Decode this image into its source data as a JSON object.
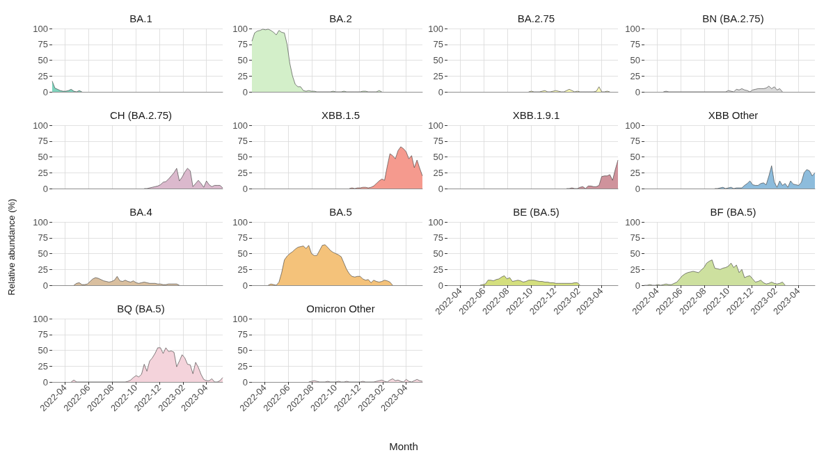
{
  "chart_data": [
    {
      "type": "area",
      "title": "BA.1",
      "color": "#7fd3bd",
      "xlim": [
        "2022-02-27",
        "2023-05-14"
      ],
      "xticks": [
        "2022-04",
        "2022-06",
        "2022-08",
        "2022-10",
        "2022-12",
        "2023-02",
        "2023-04"
      ],
      "ylim": [
        0,
        100
      ],
      "yticks": [
        0,
        25,
        50,
        75,
        100
      ],
      "grid": true,
      "tick_labels": "y",
      "x": [
        "2022-02-27",
        "2022-03-06",
        "2022-03-13",
        "2022-03-20",
        "2022-03-27",
        "2022-04-03",
        "2022-04-10",
        "2022-04-17",
        "2022-04-24",
        "2022-05-01",
        "2022-05-08",
        "2022-05-15"
      ],
      "values": [
        17,
        6,
        4,
        2,
        1,
        1,
        2,
        4,
        1,
        0,
        2,
        0
      ]
    },
    {
      "type": "area",
      "title": "BA.2",
      "color": "#d3efc9",
      "xlim": [
        "2022-02-27",
        "2023-05-14"
      ],
      "xticks": [
        "2022-04",
        "2022-06",
        "2022-08",
        "2022-10",
        "2022-12",
        "2023-02",
        "2023-04"
      ],
      "ylim": [
        0,
        100
      ],
      "yticks": [
        0,
        25,
        50,
        75,
        100
      ],
      "grid": true,
      "tick_labels": "y",
      "x": [
        "2022-02-27",
        "2022-03-06",
        "2022-03-13",
        "2022-03-20",
        "2022-03-27",
        "2022-04-03",
        "2022-04-10",
        "2022-04-17",
        "2022-04-24",
        "2022-05-01",
        "2022-05-08",
        "2022-05-15",
        "2022-05-22",
        "2022-05-29",
        "2022-06-05",
        "2022-06-12",
        "2022-06-19",
        "2022-06-26",
        "2022-07-03",
        "2022-07-10",
        "2022-07-17",
        "2022-07-24",
        "2022-07-31",
        "2022-08-07",
        "2022-08-14",
        "2022-08-21",
        "2022-08-28",
        "2022-09-04",
        "2022-09-11",
        "2022-09-18",
        "2022-09-25",
        "2022-10-02",
        "2022-10-09",
        "2022-10-16",
        "2022-10-23",
        "2022-10-30",
        "2022-11-06",
        "2022-11-13",
        "2022-11-20",
        "2022-11-27",
        "2022-12-04",
        "2022-12-11",
        "2022-12-18",
        "2022-12-25",
        "2023-01-01",
        "2023-01-08",
        "2023-01-15",
        "2023-01-22",
        "2023-01-29"
      ],
      "values": [
        80,
        93,
        96,
        97,
        99,
        98,
        99,
        97,
        94,
        90,
        97,
        94,
        93,
        75,
        45,
        25,
        12,
        8,
        8,
        2,
        1,
        2,
        1,
        1,
        0,
        0,
        0,
        0,
        0,
        0,
        1,
        0,
        0,
        0,
        1,
        0,
        0,
        0,
        0,
        0,
        0,
        1,
        1,
        0,
        0,
        0,
        0,
        2,
        0
      ]
    },
    {
      "type": "area",
      "title": "BA.2.75",
      "color": "#fbfbb8",
      "xlim": [
        "2022-02-27",
        "2023-05-14"
      ],
      "xticks": [
        "2022-04",
        "2022-06",
        "2022-08",
        "2022-10",
        "2022-12",
        "2023-02",
        "2023-04"
      ],
      "ylim": [
        0,
        100
      ],
      "yticks": [
        0,
        25,
        50,
        75,
        100
      ],
      "grid": true,
      "tick_labels": "y",
      "x": [
        "2022-09-25",
        "2022-10-02",
        "2022-10-09",
        "2022-10-16",
        "2022-10-23",
        "2022-10-30",
        "2022-11-06",
        "2022-11-13",
        "2022-11-20",
        "2022-11-27",
        "2022-12-04",
        "2022-12-11",
        "2022-12-18",
        "2022-12-25",
        "2023-01-01",
        "2023-01-08",
        "2023-01-15",
        "2023-01-22",
        "2023-01-29",
        "2023-02-05",
        "2023-02-12",
        "2023-02-19",
        "2023-02-26",
        "2023-03-05",
        "2023-03-12",
        "2023-03-19",
        "2023-03-26",
        "2023-04-02",
        "2023-04-09",
        "2023-04-16",
        "2023-04-23"
      ],
      "values": [
        0,
        1,
        0,
        0,
        0,
        1,
        2,
        0,
        0,
        1,
        2,
        1,
        0,
        0,
        2,
        4,
        2,
        0,
        1,
        0,
        0,
        0,
        0,
        0,
        0,
        1,
        8,
        0,
        0,
        1,
        0
      ]
    },
    {
      "type": "area",
      "title": "BN (BA.2.75)",
      "color": "#d9d9d9",
      "xlim": [
        "2022-02-27",
        "2023-05-14"
      ],
      "xticks": [
        "2022-04",
        "2022-06",
        "2022-08",
        "2022-10",
        "2022-12",
        "2023-02",
        "2023-04"
      ],
      "ylim": [
        0,
        100
      ],
      "yticks": [
        0,
        25,
        50,
        75,
        100
      ],
      "grid": true,
      "tick_labels": "y",
      "x": [
        "2022-04-17",
        "2022-04-24",
        "2022-05-01",
        "2022-09-25",
        "2022-10-02",
        "2022-10-09",
        "2022-10-16",
        "2022-10-23",
        "2022-10-30",
        "2022-11-06",
        "2022-11-13",
        "2022-11-20",
        "2022-11-27",
        "2022-12-04",
        "2022-12-11",
        "2022-12-18",
        "2022-12-25",
        "2023-01-01",
        "2023-01-08",
        "2023-01-15",
        "2023-01-22",
        "2023-01-29",
        "2023-02-05",
        "2023-02-12",
        "2023-02-19"
      ],
      "values": [
        0,
        1,
        0,
        0,
        2,
        1,
        0,
        4,
        3,
        5,
        3,
        2,
        0,
        3,
        4,
        5,
        5,
        5,
        6,
        9,
        5,
        8,
        3,
        5,
        0
      ]
    },
    {
      "type": "area",
      "title": "CH (BA.2.75)",
      "color": "#dbb9cd",
      "xlim": [
        "2022-02-27",
        "2023-05-14"
      ],
      "xticks": [
        "2022-04",
        "2022-06",
        "2022-08",
        "2022-10",
        "2022-12",
        "2023-02",
        "2023-04"
      ],
      "ylim": [
        0,
        100
      ],
      "yticks": [
        0,
        25,
        50,
        75,
        100
      ],
      "grid": true,
      "tick_labels": "y",
      "x": [
        "2022-10-23",
        "2022-10-30",
        "2022-11-06",
        "2022-11-13",
        "2022-11-20",
        "2022-11-27",
        "2022-12-04",
        "2022-12-11",
        "2022-12-18",
        "2022-12-25",
        "2023-01-01",
        "2023-01-08",
        "2023-01-15",
        "2023-01-22",
        "2023-01-29",
        "2023-02-05",
        "2023-02-12",
        "2023-02-19",
        "2023-02-26",
        "2023-03-05",
        "2023-03-12",
        "2023-03-19",
        "2023-03-26",
        "2023-04-02",
        "2023-04-09",
        "2023-04-16",
        "2023-04-23",
        "2023-04-30",
        "2023-05-07",
        "2023-05-14"
      ],
      "values": [
        0,
        0,
        1,
        2,
        3,
        4,
        6,
        10,
        11,
        15,
        20,
        25,
        32,
        12,
        18,
        26,
        32,
        28,
        3,
        8,
        13,
        8,
        2,
        12,
        6,
        3,
        5,
        5,
        5,
        1
      ]
    },
    {
      "type": "area",
      "title": "XBB.1.5",
      "color": "#f59a8e",
      "xlim": [
        "2022-02-27",
        "2023-05-14"
      ],
      "xticks": [
        "2022-04",
        "2022-06",
        "2022-08",
        "2022-10",
        "2022-12",
        "2023-02",
        "2023-04"
      ],
      "ylim": [
        0,
        100
      ],
      "yticks": [
        0,
        25,
        50,
        75,
        100
      ],
      "grid": true,
      "tick_labels": "y",
      "x": [
        "2022-11-06",
        "2022-11-13",
        "2022-11-20",
        "2022-11-27",
        "2022-12-04",
        "2022-12-11",
        "2022-12-18",
        "2022-12-25",
        "2023-01-01",
        "2023-01-08",
        "2023-01-15",
        "2023-01-22",
        "2023-01-29",
        "2023-02-05",
        "2023-02-12",
        "2023-02-19",
        "2023-02-26",
        "2023-03-05",
        "2023-03-12",
        "2023-03-19",
        "2023-03-26",
        "2023-04-02",
        "2023-04-09",
        "2023-04-16",
        "2023-04-23",
        "2023-04-30",
        "2023-05-07",
        "2023-05-14"
      ],
      "values": [
        0,
        1,
        0,
        1,
        1,
        2,
        2,
        1,
        2,
        4,
        8,
        12,
        15,
        13,
        35,
        55,
        52,
        47,
        60,
        66,
        63,
        58,
        47,
        52,
        33,
        45,
        32,
        20
      ]
    },
    {
      "type": "area",
      "title": "XBB.1.9.1",
      "color": "#cf939c",
      "xlim": [
        "2022-02-27",
        "2023-05-14"
      ],
      "xticks": [
        "2022-04",
        "2022-06",
        "2022-08",
        "2022-10",
        "2022-12",
        "2023-02",
        "2023-04"
      ],
      "ylim": [
        0,
        100
      ],
      "yticks": [
        0,
        25,
        50,
        75,
        100
      ],
      "grid": true,
      "tick_labels": "y",
      "x": [
        "2023-01-01",
        "2023-01-08",
        "2023-01-15",
        "2023-01-22",
        "2023-01-29",
        "2023-02-05",
        "2023-02-12",
        "2023-02-19",
        "2023-02-26",
        "2023-03-05",
        "2023-03-12",
        "2023-03-19",
        "2023-03-26",
        "2023-04-02",
        "2023-04-09",
        "2023-04-16",
        "2023-04-23",
        "2023-04-30",
        "2023-05-07",
        "2023-05-14"
      ],
      "values": [
        0,
        0,
        1,
        0,
        0,
        2,
        3,
        0,
        4,
        4,
        3,
        3,
        5,
        19,
        20,
        20,
        22,
        13,
        30,
        45
      ]
    },
    {
      "type": "area",
      "title": "XBB Other",
      "color": "#8dbcdc",
      "xlim": [
        "2022-02-27",
        "2023-05-14"
      ],
      "xticks": [
        "2022-04",
        "2022-06",
        "2022-08",
        "2022-10",
        "2022-12",
        "2023-02",
        "2023-04"
      ],
      "ylim": [
        0,
        100
      ],
      "yticks": [
        0,
        25,
        50,
        75,
        100
      ],
      "grid": true,
      "tick_labels": "y",
      "x": [
        "2022-08-28",
        "2022-09-04",
        "2022-09-11",
        "2022-09-18",
        "2022-09-25",
        "2022-10-02",
        "2022-10-09",
        "2022-10-16",
        "2022-10-23",
        "2022-10-30",
        "2022-11-06",
        "2022-11-13",
        "2022-11-20",
        "2022-11-27",
        "2022-12-04",
        "2022-12-11",
        "2022-12-18",
        "2022-12-25",
        "2023-01-01",
        "2023-01-08",
        "2023-01-15",
        "2023-01-22",
        "2023-01-29",
        "2023-02-05",
        "2023-02-12",
        "2023-02-19",
        "2023-02-26",
        "2023-03-05",
        "2023-03-12",
        "2023-03-19",
        "2023-03-26",
        "2023-04-02",
        "2023-04-09",
        "2023-04-16",
        "2023-04-23",
        "2023-04-30",
        "2023-05-07",
        "2023-05-14"
      ],
      "values": [
        0,
        0,
        1,
        2,
        0,
        1,
        2,
        0,
        1,
        1,
        1,
        5,
        8,
        12,
        6,
        5,
        5,
        8,
        9,
        6,
        20,
        36,
        10,
        2,
        12,
        5,
        8,
        2,
        12,
        7,
        6,
        5,
        10,
        25,
        30,
        28,
        20,
        25
      ]
    },
    {
      "type": "area",
      "title": "BA.4",
      "color": "#d9bf9f",
      "xlim": [
        "2022-02-27",
        "2023-05-14"
      ],
      "xticks": [
        "2022-04",
        "2022-06",
        "2022-08",
        "2022-10",
        "2022-12",
        "2023-02",
        "2023-04"
      ],
      "ylim": [
        0,
        100
      ],
      "yticks": [
        0,
        25,
        50,
        75,
        100
      ],
      "grid": true,
      "tick_labels": "y",
      "ylabel": "Relative abundance (%)",
      "x": [
        "2022-04-24",
        "2022-05-01",
        "2022-05-08",
        "2022-05-15",
        "2022-05-22",
        "2022-05-29",
        "2022-06-05",
        "2022-06-12",
        "2022-06-19",
        "2022-06-26",
        "2022-07-03",
        "2022-07-10",
        "2022-07-17",
        "2022-07-24",
        "2022-07-31",
        "2022-08-07",
        "2022-08-14",
        "2022-08-21",
        "2022-08-28",
        "2022-09-04",
        "2022-09-11",
        "2022-09-18",
        "2022-09-25",
        "2022-10-02",
        "2022-10-09",
        "2022-10-16",
        "2022-10-23",
        "2022-10-30",
        "2022-11-06",
        "2022-11-13",
        "2022-11-20",
        "2022-11-27",
        "2022-12-04",
        "2022-12-11",
        "2022-12-18",
        "2022-12-25",
        "2023-01-01",
        "2023-01-08",
        "2023-01-15",
        "2023-01-22"
      ],
      "values": [
        0,
        3,
        4,
        1,
        1,
        2,
        6,
        10,
        12,
        11,
        9,
        7,
        6,
        5,
        6,
        8,
        14,
        7,
        6,
        8,
        6,
        5,
        7,
        4,
        3,
        4,
        5,
        4,
        3,
        3,
        3,
        2,
        2,
        1,
        1,
        2,
        2,
        2,
        2,
        0
      ]
    },
    {
      "type": "area",
      "title": "BA.5",
      "color": "#f4c27a",
      "xlim": [
        "2022-02-27",
        "2023-05-14"
      ],
      "xticks": [
        "2022-04",
        "2022-06",
        "2022-08",
        "2022-10",
        "2022-12",
        "2023-02",
        "2023-04"
      ],
      "ylim": [
        0,
        100
      ],
      "yticks": [
        0,
        25,
        50,
        75,
        100
      ],
      "grid": true,
      "tick_labels": "y",
      "x": [
        "2022-04-10",
        "2022-04-17",
        "2022-04-24",
        "2022-05-01",
        "2022-05-08",
        "2022-05-15",
        "2022-05-22",
        "2022-05-29",
        "2022-06-05",
        "2022-06-12",
        "2022-06-19",
        "2022-06-26",
        "2022-07-03",
        "2022-07-10",
        "2022-07-17",
        "2022-07-24",
        "2022-07-31",
        "2022-08-07",
        "2022-08-14",
        "2022-08-21",
        "2022-08-28",
        "2022-09-04",
        "2022-09-11",
        "2022-09-18",
        "2022-09-25",
        "2022-10-02",
        "2022-10-09",
        "2022-10-16",
        "2022-10-23",
        "2022-10-30",
        "2022-11-06",
        "2022-11-13",
        "2022-11-20",
        "2022-11-27",
        "2022-12-04",
        "2022-12-11",
        "2022-12-18",
        "2022-12-25",
        "2023-01-01",
        "2023-01-08",
        "2023-01-15",
        "2023-01-22",
        "2023-01-29",
        "2023-02-05",
        "2023-02-12",
        "2023-02-19",
        "2023-02-26"
      ],
      "values": [
        0,
        2,
        1,
        0,
        5,
        20,
        40,
        46,
        50,
        53,
        57,
        60,
        61,
        62,
        58,
        63,
        50,
        47,
        47,
        55,
        63,
        64,
        60,
        55,
        52,
        50,
        48,
        45,
        35,
        25,
        18,
        14,
        13,
        14,
        14,
        10,
        8,
        9,
        4,
        8,
        6,
        5,
        6,
        8,
        7,
        5,
        0
      ]
    },
    {
      "type": "area",
      "title": "BE (BA.5)",
      "color": "#d4df7e",
      "xlim": [
        "2022-02-27",
        "2023-05-14"
      ],
      "xticks": [
        "2022-04",
        "2022-06",
        "2022-08",
        "2022-10",
        "2022-12",
        "2023-02",
        "2023-04"
      ],
      "ylim": [
        0,
        100
      ],
      "yticks": [
        0,
        25,
        50,
        75,
        100
      ],
      "grid": true,
      "x": [
        "2022-05-22",
        "2022-05-29",
        "2022-06-05",
        "2022-06-12",
        "2022-06-19",
        "2022-06-26",
        "2022-07-03",
        "2022-07-10",
        "2022-07-17",
        "2022-07-24",
        "2022-07-31",
        "2022-08-07",
        "2022-08-14",
        "2022-08-21",
        "2022-08-28",
        "2022-09-04",
        "2022-09-11",
        "2022-09-18",
        "2022-09-25",
        "2022-10-02",
        "2022-10-09",
        "2022-10-16",
        "2022-10-23",
        "2022-10-30",
        "2022-11-06",
        "2022-11-13",
        "2022-11-20",
        "2022-11-27",
        "2022-12-04",
        "2022-12-11",
        "2022-12-18",
        "2022-12-25",
        "2023-01-01",
        "2023-01-08",
        "2023-01-15",
        "2023-01-22",
        "2023-01-29",
        "2023-02-05"
      ],
      "values": [
        0,
        1,
        2,
        8,
        8,
        7,
        9,
        10,
        13,
        15,
        10,
        12,
        6,
        7,
        8,
        7,
        5,
        6,
        8,
        8,
        8,
        7,
        6,
        6,
        5,
        5,
        4,
        4,
        3,
        3,
        3,
        3,
        3,
        3,
        3,
        4,
        4,
        0
      ]
    },
    {
      "type": "area",
      "title": "BF (BA.5)",
      "color": "#cde09f",
      "xlim": [
        "2022-02-27",
        "2023-05-14"
      ],
      "xticks": [
        "2022-04",
        "2022-06",
        "2022-08",
        "2022-10",
        "2022-12",
        "2023-02",
        "2023-04"
      ],
      "ylim": [
        0,
        100
      ],
      "yticks": [
        0,
        25,
        50,
        75,
        100
      ],
      "grid": true,
      "x": [
        "2022-02-27",
        "2022-03-06",
        "2022-03-13",
        "2022-03-20",
        "2022-03-27",
        "2022-04-03",
        "2022-04-10",
        "2022-04-17",
        "2022-04-24",
        "2022-05-01",
        "2022-05-08",
        "2022-05-15",
        "2022-05-22",
        "2022-05-29",
        "2022-06-05",
        "2022-06-12",
        "2022-06-19",
        "2022-06-26",
        "2022-07-03",
        "2022-07-10",
        "2022-07-17",
        "2022-07-24",
        "2022-07-31",
        "2022-08-07",
        "2022-08-14",
        "2022-08-21",
        "2022-08-28",
        "2022-09-04",
        "2022-09-11",
        "2022-09-18",
        "2022-09-25",
        "2022-10-02",
        "2022-10-09",
        "2022-10-16",
        "2022-10-23",
        "2022-10-30",
        "2022-11-06",
        "2022-11-13",
        "2022-11-20",
        "2022-11-27",
        "2022-12-04",
        "2022-12-11",
        "2022-12-18",
        "2022-12-25",
        "2023-01-01",
        "2023-01-08",
        "2023-01-15",
        "2023-01-22",
        "2023-01-29",
        "2023-02-05",
        "2023-02-12",
        "2023-02-19",
        "2023-02-26"
      ],
      "values": [
        0,
        0,
        1,
        0,
        0,
        1,
        0,
        1,
        2,
        1,
        1,
        3,
        5,
        10,
        15,
        18,
        20,
        21,
        22,
        21,
        20,
        24,
        28,
        35,
        38,
        40,
        27,
        26,
        25,
        27,
        28,
        30,
        35,
        28,
        32,
        20,
        25,
        12,
        14,
        15,
        10,
        5,
        6,
        8,
        4,
        2,
        3,
        5,
        3,
        2,
        3,
        5,
        0
      ]
    },
    {
      "type": "area",
      "title": "BQ (BA.5)",
      "color": "#f4d3db",
      "xlim": [
        "2022-02-27",
        "2023-05-14"
      ],
      "xticks": [
        "2022-04",
        "2022-06",
        "2022-08",
        "2022-10",
        "2022-12",
        "2023-02",
        "2023-04"
      ],
      "ylim": [
        0,
        100
      ],
      "yticks": [
        0,
        25,
        50,
        75,
        100
      ],
      "grid": true,
      "x": [
        "2022-04-17",
        "2022-04-24",
        "2022-05-01",
        "2022-09-04",
        "2022-09-11",
        "2022-09-18",
        "2022-09-25",
        "2022-10-02",
        "2022-10-09",
        "2022-10-16",
        "2022-10-23",
        "2022-10-30",
        "2022-11-06",
        "2022-11-13",
        "2022-11-20",
        "2022-11-27",
        "2022-12-04",
        "2022-12-11",
        "2022-12-18",
        "2022-12-25",
        "2023-01-01",
        "2023-01-08",
        "2023-01-15",
        "2023-01-22",
        "2023-01-29",
        "2023-02-05",
        "2023-02-12",
        "2023-02-19",
        "2023-02-26",
        "2023-03-05",
        "2023-03-12",
        "2023-03-19",
        "2023-03-26",
        "2023-04-02",
        "2023-04-09",
        "2023-04-16",
        "2023-04-23",
        "2023-04-30",
        "2023-05-07",
        "2023-05-14"
      ],
      "values": [
        0,
        3,
        0,
        0,
        1,
        3,
        7,
        10,
        8,
        12,
        28,
        17,
        33,
        38,
        45,
        54,
        54,
        45,
        54,
        48,
        49,
        47,
        24,
        33,
        43,
        38,
        28,
        27,
        13,
        31,
        23,
        12,
        4,
        2,
        2,
        5,
        0,
        0,
        2,
        7
      ]
    },
    {
      "type": "area",
      "title": "Omicron Other",
      "color": "#f6d9df",
      "xlim": [
        "2022-02-27",
        "2023-05-14"
      ],
      "xticks": [
        "2022-04",
        "2022-06",
        "2022-08",
        "2022-10",
        "2022-12",
        "2023-02",
        "2023-04"
      ],
      "ylim": [
        0,
        100
      ],
      "yticks": [
        0,
        25,
        50,
        75,
        100
      ],
      "grid": true,
      "xlabel": "Month",
      "x": [
        "2022-07-24",
        "2022-07-31",
        "2022-08-07",
        "2022-08-14",
        "2022-08-21",
        "2022-08-28",
        "2022-09-04",
        "2022-09-11",
        "2022-09-18",
        "2022-09-25",
        "2022-10-02",
        "2022-10-09",
        "2022-10-16",
        "2022-10-23",
        "2022-10-30",
        "2022-11-06",
        "2022-11-13",
        "2022-11-20",
        "2022-11-27",
        "2022-12-04",
        "2022-12-11",
        "2022-12-18",
        "2022-12-25",
        "2023-01-01",
        "2023-01-08",
        "2023-01-15",
        "2023-01-22",
        "2023-01-29",
        "2023-02-05",
        "2023-02-12",
        "2023-02-19",
        "2023-02-26",
        "2023-03-05",
        "2023-03-12",
        "2023-03-19",
        "2023-03-26",
        "2023-04-02",
        "2023-04-09",
        "2023-04-16",
        "2023-04-23",
        "2023-04-30",
        "2023-05-07",
        "2023-05-14"
      ],
      "values": [
        0,
        1,
        2,
        1,
        0,
        0,
        0,
        1,
        0,
        0,
        0,
        1,
        0,
        0,
        1,
        0,
        0,
        0,
        0,
        0,
        1,
        0,
        0,
        0,
        0,
        1,
        2,
        3,
        1,
        0,
        3,
        5,
        2,
        3,
        1,
        0,
        4,
        1,
        0,
        2,
        4,
        2,
        1
      ]
    }
  ]
}
